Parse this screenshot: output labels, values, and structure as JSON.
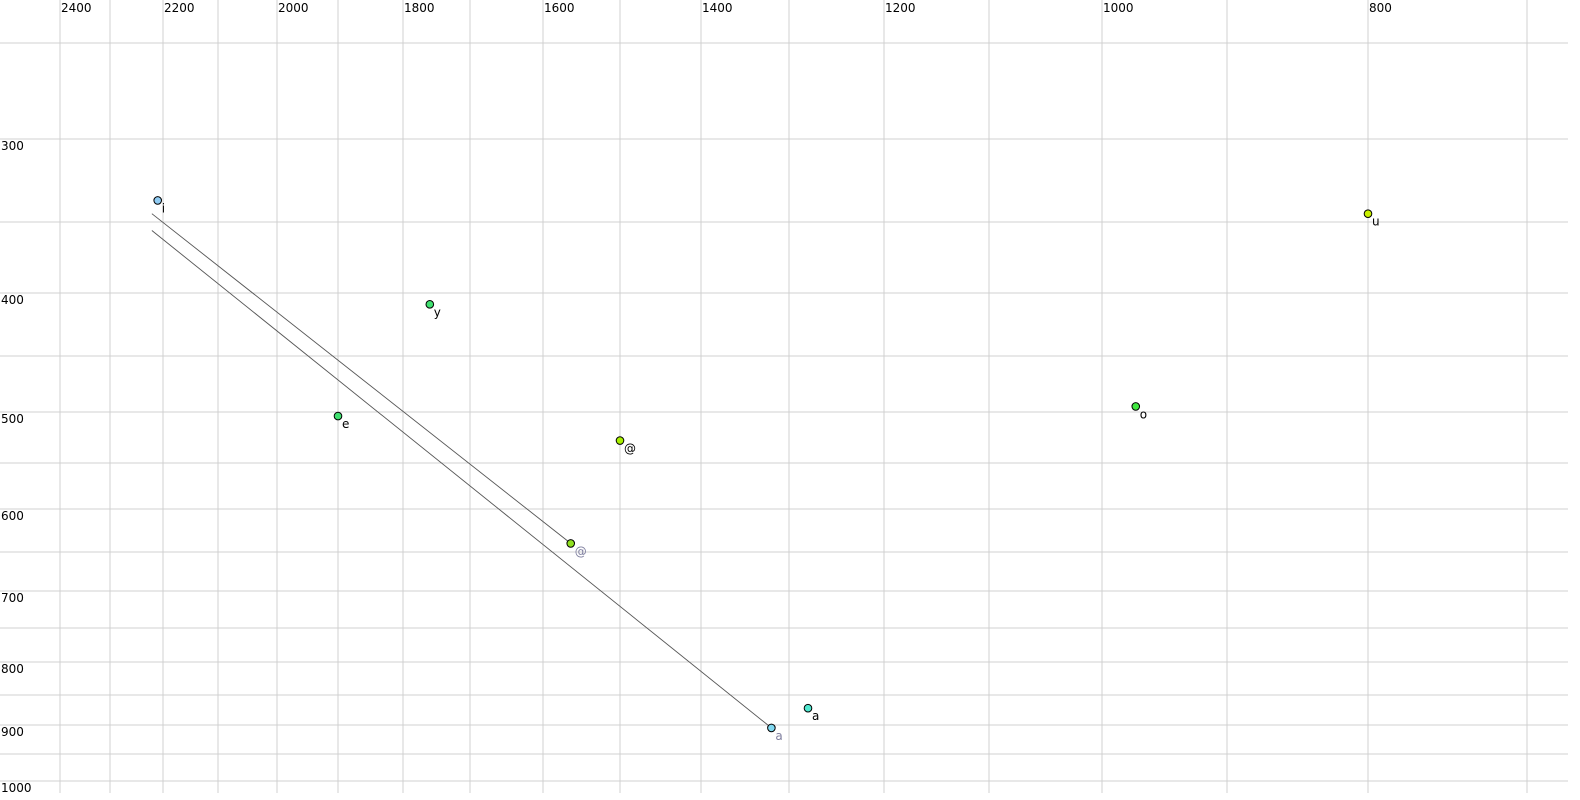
{
  "chart_data": {
    "type": "scatter",
    "title": "",
    "xlabel": "",
    "ylabel": "",
    "x_axis": {
      "reversed": true,
      "scale": "nonlinear",
      "range": [
        2450,
        680
      ],
      "tick_labels": [
        "2400",
        "2200",
        "2000",
        "1800",
        "1600",
        "1400",
        "1200",
        "1000",
        "800"
      ],
      "grid_step": 100
    },
    "y_axis": {
      "reversed": true,
      "scale": "nonlinear",
      "range": [
        250,
        1010
      ],
      "tick_labels": [
        "300",
        "400",
        "500",
        "600",
        "700",
        "800",
        "900",
        "1000"
      ],
      "grid_step": 50
    },
    "grid": true,
    "points": [
      {
        "label": "i",
        "x": 2210,
        "y": 337,
        "color": "#90ccf4",
        "label_color": "#000000"
      },
      {
        "label": "u",
        "x": 800,
        "y": 345,
        "color": "#c8f000",
        "label_color": "#000000"
      },
      {
        "label": "y",
        "x": 1760,
        "y": 409,
        "color": "#40e070",
        "label_color": "#000000"
      },
      {
        "label": "e",
        "x": 1900,
        "y": 504,
        "color": "#40e070",
        "label_color": "#000000"
      },
      {
        "label": "o",
        "x": 973,
        "y": 495,
        "color": "#40e840",
        "label_color": "#000000"
      },
      {
        "label": "@",
        "x": 1500,
        "y": 528,
        "color": "#a8f000",
        "label_color": "#000000"
      },
      {
        "label": "@",
        "x": 1564,
        "y": 640,
        "color": "#90e020",
        "label_color": "#8080a0"
      },
      {
        "label": "a",
        "x": 1280,
        "y": 872,
        "color": "#50e8d0",
        "label_color": "#000000"
      },
      {
        "label": "a",
        "x": 1320,
        "y": 905,
        "color": "#80d8f0",
        "label_color": "#8080a0"
      }
    ],
    "trajectories": [
      {
        "from": {
          "x": 2221,
          "y": 345
        },
        "to": {
          "x": 1564,
          "y": 640
        }
      },
      {
        "from": {
          "x": 2221,
          "y": 356
        },
        "to": {
          "x": 1320,
          "y": 905
        }
      }
    ],
    "grid_color": "#d0d0d0",
    "line_color": "#555555"
  }
}
